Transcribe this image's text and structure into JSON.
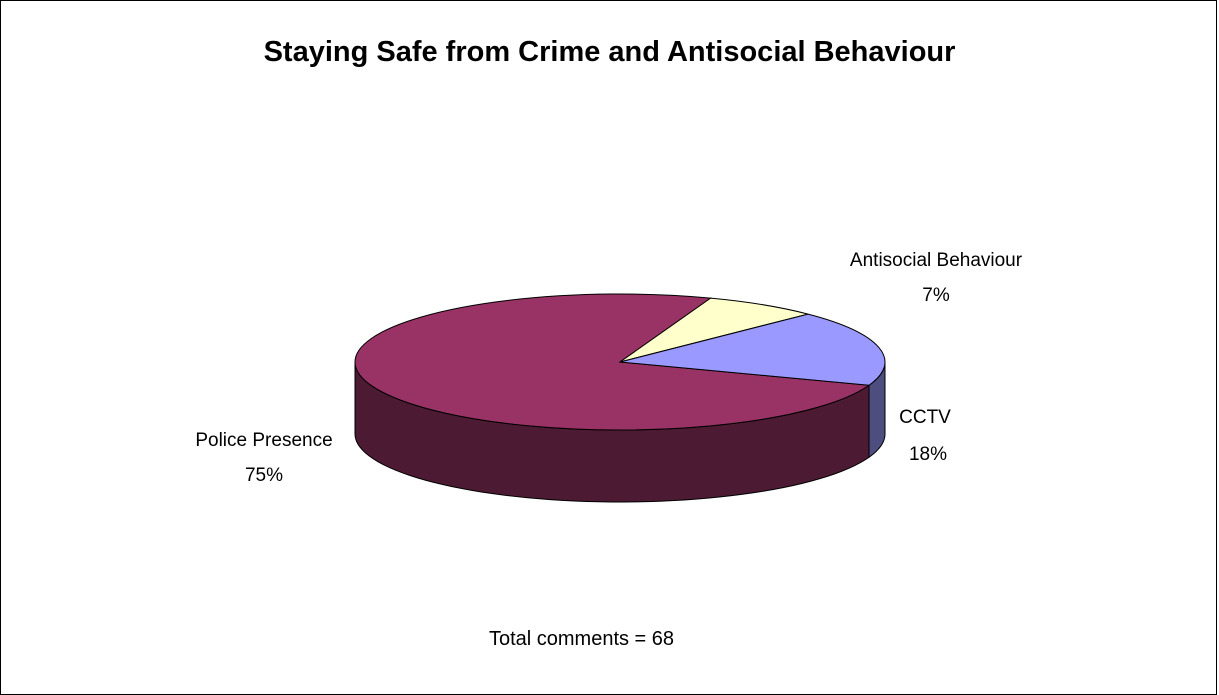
{
  "chart_data": {
    "type": "pie",
    "title": "Staying Safe from Crime and Antisocial Behaviour",
    "slices": [
      {
        "label": "Police Presence",
        "value": 75,
        "value_label": "75%",
        "color": "#993366",
        "side_color": "#4d1a33"
      },
      {
        "label": "CCTV",
        "value": 18,
        "value_label": "18%",
        "color": "#9999ff",
        "side_color": "#4d4d80"
      },
      {
        "label": "Antisocial Behaviour",
        "value": 7,
        "value_label": "7%",
        "color": "#ffffcc",
        "side_color": "#808066"
      }
    ],
    "three_d": true,
    "legend": "none",
    "footnote": "Total comments = 68"
  }
}
